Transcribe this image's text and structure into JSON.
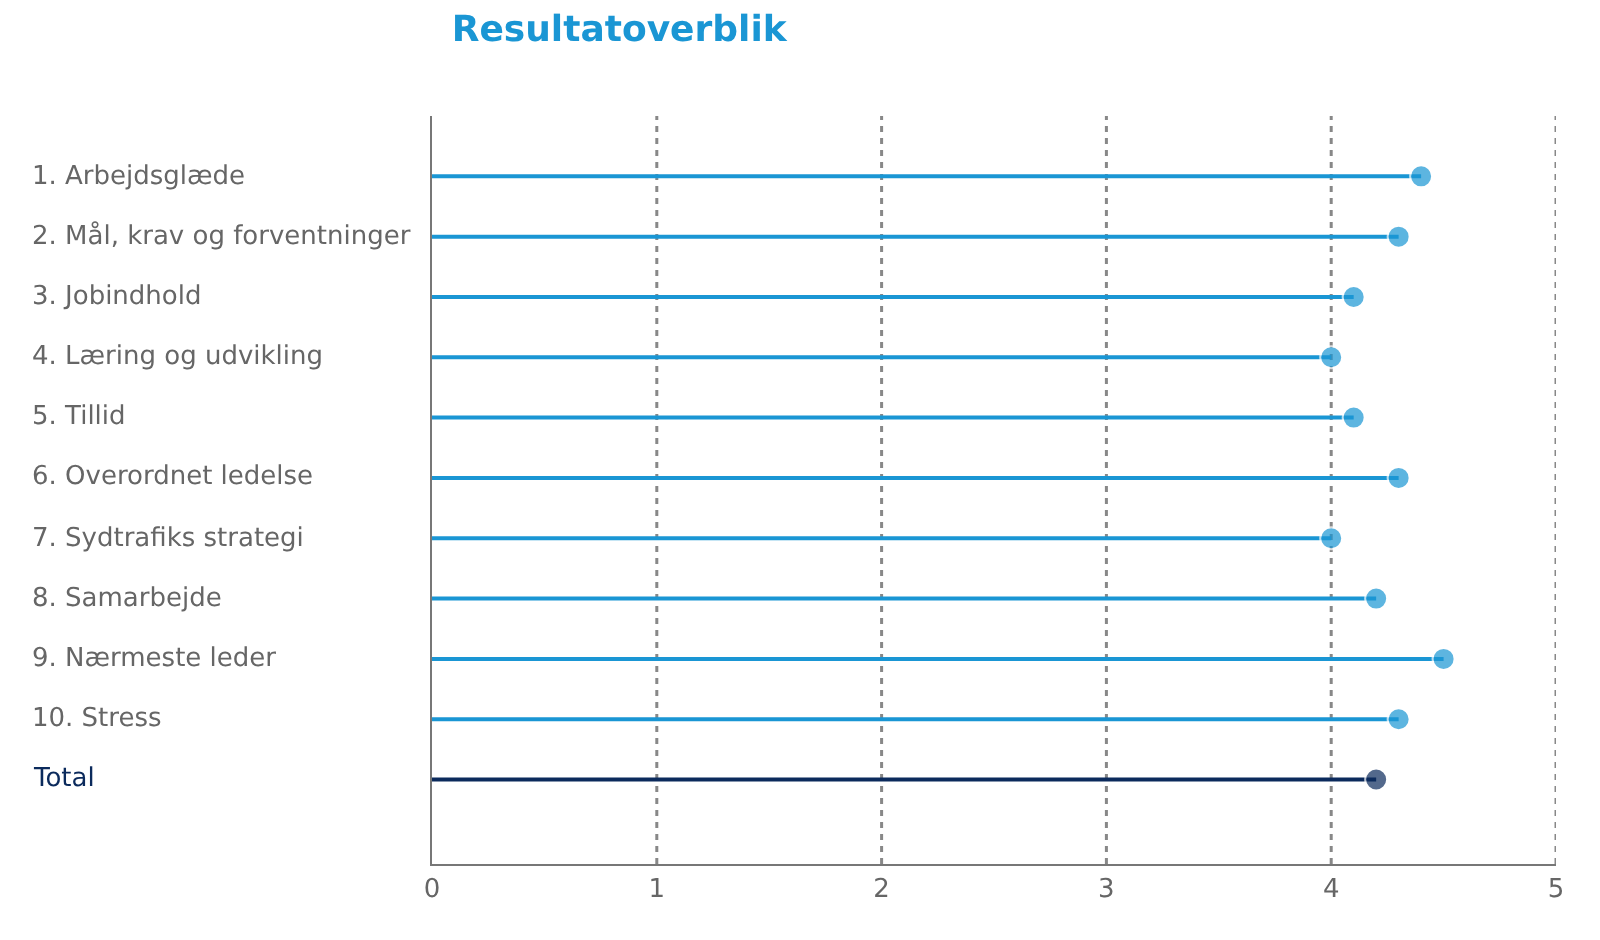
{
  "chart_data": {
    "type": "lollipop",
    "title": "Resultatoverblik",
    "orientation": "horizontal",
    "categories": [
      "1. Arbejdsglæde",
      "2. Mål, krav og forventninger",
      "3. Jobindhold",
      "4. Læring og udvikling",
      "5. Tillid",
      "6. Overordnet ledelse",
      "7. Sydtrafiks strategi",
      "8. Samarbejde",
      "9. Nærmeste leder",
      "10. Stress",
      "Total"
    ],
    "values": [
      4.4,
      4.3,
      4.1,
      4.0,
      4.1,
      4.3,
      4.0,
      4.2,
      4.5,
      4.3,
      4.2
    ],
    "colors": [
      "#1a96d4",
      "#1a96d4",
      "#1a96d4",
      "#1a96d4",
      "#1a96d4",
      "#1a96d4",
      "#1a96d4",
      "#1a96d4",
      "#1a96d4",
      "#1a96d4",
      "#0b2a5c"
    ],
    "xlim": [
      0,
      5
    ],
    "xticks": [
      0,
      1,
      2,
      3,
      4,
      5
    ],
    "grid": "x",
    "marker": "circle"
  }
}
